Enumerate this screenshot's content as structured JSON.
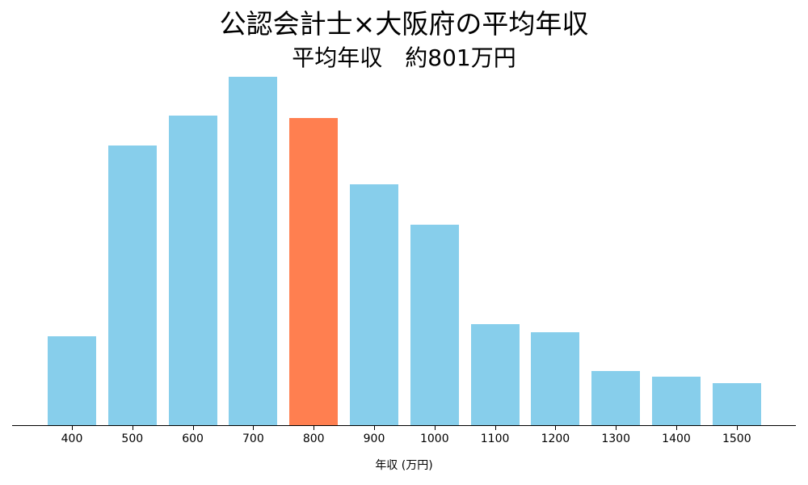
{
  "chart_data": {
    "type": "bar",
    "title": "公認会計士×大阪府の平均年収",
    "subtitle": "平均年収　約801万円",
    "xlabel": "年収 (万円)",
    "ylabel": "",
    "categories": [
      "400",
      "500",
      "600",
      "700",
      "800",
      "900",
      "1000",
      "1100",
      "1200",
      "1300",
      "1400",
      "1500"
    ],
    "values": [
      110,
      346,
      383,
      431,
      380,
      298,
      248,
      125,
      115,
      67,
      60,
      52
    ],
    "value_units": "relative bar height (no y-axis shown)",
    "highlight_category": "800",
    "colors": {
      "default": "#87CEEB",
      "highlight": "#FF7F50"
    },
    "grid": false,
    "legend": null
  }
}
